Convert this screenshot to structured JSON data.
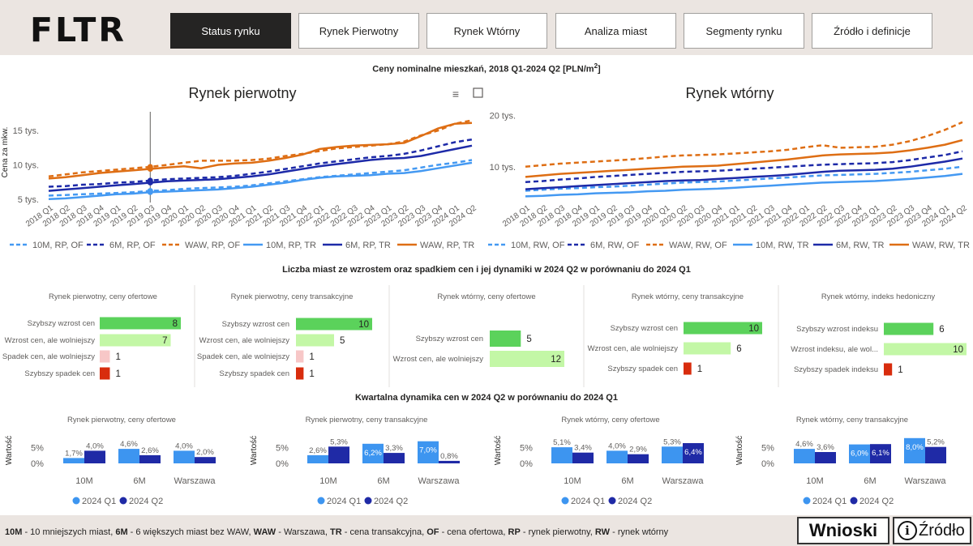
{
  "header": {
    "logo": "FLTR",
    "tabs": [
      "Status rynku",
      "Rynek Pierwotny",
      "Rynek Wtórny",
      "Analiza miast",
      "Segmenty rynku",
      "Źródło i definicje"
    ]
  },
  "colors": {
    "light_blue": "#4499f2",
    "dark_blue": "#1d2aa8",
    "orange": "#de6e14",
    "bar_green": "#5bd25b",
    "bar_lightgreen": "#c3f7a6",
    "bar_pink": "#f7c7c7",
    "bar_red": "#d82c0d",
    "q1": "#3d95f0",
    "q2": "#1f2aa6"
  },
  "prices": {
    "title_main": "Ceny nominalne mieszkań, 2018 Q1-2024 Q2 [PLN/m",
    "title_sup": "2",
    "title_end": "]",
    "quarters": [
      "2018 Q1",
      "2018 Q2",
      "2018 Q3",
      "2018 Q4",
      "2019 Q1",
      "2019 Q2",
      "2019 Q3",
      "2019 Q4",
      "2020 Q1",
      "2020 Q2",
      "2020 Q3",
      "2020 Q4",
      "2021 Q1",
      "2021 Q2",
      "2021 Q3",
      "2021 Q4",
      "2022 Q1",
      "2022 Q2",
      "2022 Q3",
      "2022 Q4",
      "2023 Q1",
      "2023 Q2",
      "2023 Q3",
      "2023 Q4",
      "2024 Q1",
      "2024 Q2"
    ],
    "ylabel": "Cena za mkw."
  },
  "chart_data": [
    {
      "type": "line",
      "title": "Rynek pierwotny",
      "ylabel": "Cena za mkw.",
      "ylim": [
        4500,
        17500
      ],
      "yticks": [
        {
          "v": 5000,
          "label": "5 tys."
        },
        {
          "v": 10000,
          "label": "10 tys."
        },
        {
          "v": 15000,
          "label": "15 tys."
        }
      ],
      "series": [
        {
          "name": "10M, RP, OF",
          "color": "light_blue",
          "dashed": true,
          "values": [
            5500,
            5600,
            5700,
            5800,
            5900,
            6000,
            6200,
            6300,
            6500,
            6600,
            6700,
            6800,
            7000,
            7300,
            7600,
            7900,
            8200,
            8400,
            8600,
            8800,
            9000,
            9200,
            9600,
            10000,
            10300,
            10700
          ]
        },
        {
          "name": "6M, RP, OF",
          "color": "dark_blue",
          "dashed": true,
          "values": [
            6800,
            6900,
            7100,
            7200,
            7400,
            7500,
            7700,
            7900,
            8000,
            8100,
            8200,
            8400,
            8700,
            9000,
            9400,
            9800,
            10200,
            10500,
            10800,
            11100,
            11300,
            11600,
            12100,
            12700,
            13300,
            13700
          ]
        },
        {
          "name": "WAW, RP, OF",
          "color": "orange",
          "dashed": true,
          "values": [
            8300,
            8600,
            8900,
            9100,
            9300,
            9500,
            9700,
            10000,
            10300,
            10600,
            10600,
            10600,
            10700,
            10900,
            11300,
            11600,
            12000,
            12400,
            12600,
            12800,
            13000,
            13400,
            14300,
            15000,
            16000,
            16500
          ]
        },
        {
          "name": "10M, RP, TR",
          "color": "light_blue",
          "dashed": false,
          "values": [
            5000,
            5100,
            5300,
            5500,
            5700,
            5800,
            6000,
            6100,
            6200,
            6300,
            6400,
            6600,
            6800,
            7100,
            7400,
            7800,
            8100,
            8300,
            8400,
            8500,
            8700,
            8800,
            9100,
            9500,
            9900,
            10300
          ]
        },
        {
          "name": "6M, RP, TR",
          "color": "dark_blue",
          "dashed": false,
          "values": [
            6200,
            6400,
            6600,
            6800,
            7000,
            7200,
            7400,
            7600,
            7700,
            7800,
            7900,
            8100,
            8300,
            8600,
            9000,
            9400,
            9800,
            10100,
            10400,
            10700,
            10900,
            11000,
            11300,
            11800,
            12300,
            12800
          ]
        },
        {
          "name": "WAW, RP, TR",
          "color": "orange",
          "dashed": false,
          "values": [
            8000,
            8200,
            8500,
            8800,
            9000,
            9200,
            9400,
            9600,
            9800,
            9500,
            10000,
            10200,
            10300,
            10600,
            11000,
            11500,
            12300,
            12600,
            12800,
            12900,
            13000,
            13200,
            14200,
            15300,
            16000,
            16100
          ]
        }
      ]
    },
    {
      "type": "line",
      "title": "Rynek wtórny",
      "ylabel": "",
      "ylim": [
        3000,
        22000
      ],
      "yticks": [
        {
          "v": 10000,
          "label": "10 tys."
        },
        {
          "v": 20000,
          "label": "20 tys."
        }
      ],
      "series": [
        {
          "name": "10M, RW, OF",
          "color": "light_blue",
          "dashed": true,
          "values": [
            5300,
            5500,
            5700,
            5800,
            6000,
            6100,
            6300,
            6500,
            6700,
            6900,
            7000,
            7100,
            7300,
            7500,
            7700,
            7900,
            8100,
            8300,
            8400,
            8500,
            8600,
            8800,
            9000,
            9300,
            9600,
            10000
          ]
        },
        {
          "name": "6M, RW, OF",
          "color": "dark_blue",
          "dashed": true,
          "values": [
            7000,
            7200,
            7500,
            7700,
            8000,
            8200,
            8400,
            8600,
            8800,
            9000,
            9100,
            9200,
            9400,
            9600,
            9800,
            10000,
            10200,
            10400,
            10500,
            10600,
            10700,
            10900,
            11300,
            11800,
            12300,
            13000
          ]
        },
        {
          "name": "WAW, RW, OF",
          "color": "orange",
          "dashed": true,
          "values": [
            10000,
            10300,
            10600,
            10800,
            11000,
            11200,
            11400,
            11700,
            12000,
            12200,
            12300,
            12400,
            12600,
            12800,
            13000,
            13300,
            13800,
            14200,
            13700,
            13800,
            13900,
            14300,
            15000,
            16000,
            17200,
            18700
          ]
        },
        {
          "name": "10M, RW, TR",
          "color": "light_blue",
          "dashed": false,
          "values": [
            4200,
            4300,
            4500,
            4600,
            4800,
            4900,
            5000,
            5200,
            5300,
            5500,
            5600,
            5700,
            5900,
            6100,
            6300,
            6500,
            6700,
            6900,
            7000,
            7100,
            7200,
            7400,
            7600,
            7900,
            8200,
            8600
          ]
        },
        {
          "name": "6M, RW, TR",
          "color": "dark_blue",
          "dashed": false,
          "values": [
            5600,
            5800,
            6000,
            6200,
            6400,
            6600,
            6800,
            7000,
            7200,
            7300,
            7400,
            7600,
            7800,
            8000,
            8200,
            8400,
            8700,
            9000,
            9200,
            9300,
            9400,
            9600,
            10000,
            10500,
            11000,
            11600
          ]
        },
        {
          "name": "WAW, RW, TR",
          "color": "orange",
          "dashed": false,
          "values": [
            8000,
            8300,
            8600,
            8800,
            9000,
            9200,
            9400,
            9600,
            9800,
            10000,
            10100,
            10200,
            10500,
            10800,
            11100,
            11400,
            11800,
            12200,
            12400,
            12500,
            12600,
            12800,
            13200,
            13700,
            14300,
            15200
          ]
        }
      ]
    },
    {
      "type": "bar",
      "orientation": "horizontal",
      "title": "Rynek pierwotny, ceny ofertowe",
      "categories": [
        "Szybszy wzrost cen",
        "Wzrost cen, ale wolniejszy",
        "Spadek cen, ale wolniejszy",
        "Szybszy spadek cen"
      ],
      "values": [
        8,
        7,
        1,
        1
      ],
      "colors": [
        "bar_green",
        "bar_lightgreen",
        "bar_pink",
        "bar_red"
      ],
      "max": 8
    },
    {
      "type": "bar",
      "orientation": "horizontal",
      "title": "Rynek pierwotny, ceny transakcyjne",
      "categories": [
        "Szybszy wzrost cen",
        "Wzrost cen, ale wolniejszy",
        "Spadek cen, ale wolniejszy",
        "Szybszy spadek cen"
      ],
      "values": [
        10,
        5,
        1,
        1
      ],
      "colors": [
        "bar_green",
        "bar_lightgreen",
        "bar_pink",
        "bar_red"
      ],
      "max": 10
    },
    {
      "type": "bar",
      "orientation": "horizontal",
      "title": "Rynek wtórny, ceny ofertowe",
      "categories": [
        "Szybszy wzrost cen",
        "Wzrost cen, ale wolniejszy"
      ],
      "values": [
        5,
        12
      ],
      "colors": [
        "bar_green",
        "bar_lightgreen"
      ],
      "max": 12
    },
    {
      "type": "bar",
      "orientation": "horizontal",
      "title": "Rynek wtórny, ceny transakcyjne",
      "categories": [
        "Szybszy wzrost cen",
        "Wzrost cen, ale wolniejszy",
        "Szybszy spadek cen"
      ],
      "values": [
        10,
        6,
        1
      ],
      "colors": [
        "bar_green",
        "bar_lightgreen",
        "bar_red"
      ],
      "max": 10
    },
    {
      "type": "bar",
      "orientation": "horizontal",
      "title": "Rynek wtórny, indeks hedoniczny",
      "categories": [
        "Szybszy wzrost indeksu",
        "Wzrost indeksu, ale wol...",
        "Szybszy spadek indeksu"
      ],
      "values": [
        6,
        10,
        1
      ],
      "colors": [
        "bar_green",
        "bar_lightgreen",
        "bar_red"
      ],
      "max": 10
    },
    {
      "type": "bar",
      "title": "Rynek pierwotny, ceny ofertowe",
      "ylabel": "Wartość",
      "yticks": [
        "5%",
        "0%"
      ],
      "categories": [
        "10M",
        "6M",
        "Warszawa"
      ],
      "series": [
        {
          "name": "2024 Q1",
          "values": [
            1.7,
            4.6,
            4.0
          ],
          "labels": [
            "1,7%",
            "4,6%",
            "4,0%"
          ]
        },
        {
          "name": "2024 Q2",
          "values": [
            4.0,
            2.6,
            2.0
          ],
          "labels": [
            "4,0%",
            "2,6%",
            "2,0%"
          ]
        }
      ]
    },
    {
      "type": "bar",
      "title": "Rynek pierwotny, ceny transakcyjne",
      "ylabel": "Wartość",
      "yticks": [
        "5%",
        "0%"
      ],
      "categories": [
        "10M",
        "6M",
        "Warszawa"
      ],
      "series": [
        {
          "name": "2024 Q1",
          "values": [
            2.6,
            6.2,
            7.0
          ],
          "labels": [
            "2,6%",
            "6,2%",
            "7,0%"
          ]
        },
        {
          "name": "2024 Q2",
          "values": [
            5.3,
            3.3,
            0.8
          ],
          "labels": [
            "5,3%",
            "3,3%",
            "0,8%"
          ]
        }
      ]
    },
    {
      "type": "bar",
      "title": "Rynek wtórny, ceny ofertowe",
      "ylabel": "Wartość",
      "yticks": [
        "5%",
        "0%"
      ],
      "categories": [
        "10M",
        "6M",
        "Warszawa"
      ],
      "series": [
        {
          "name": "2024 Q1",
          "values": [
            5.1,
            4.0,
            5.3
          ],
          "labels": [
            "5,1%",
            "4,0%",
            "5,3%"
          ]
        },
        {
          "name": "2024 Q2",
          "values": [
            3.4,
            2.9,
            6.4
          ],
          "labels": [
            "3,4%",
            "2,9%",
            "6,4%"
          ]
        }
      ]
    },
    {
      "type": "bar",
      "title": "Rynek wtórny, ceny transakcyjne",
      "ylabel": "Wartość",
      "yticks": [
        "5%",
        "0%"
      ],
      "categories": [
        "10M",
        "6M",
        "Warszawa"
      ],
      "series": [
        {
          "name": "2024 Q1",
          "values": [
            4.6,
            6.0,
            8.0
          ],
          "labels": [
            "4,6%",
            "6,0%",
            "8,0%"
          ]
        },
        {
          "name": "2024 Q2",
          "values": [
            3.6,
            6.1,
            5.2
          ],
          "labels": [
            "3,6%",
            "6,1%",
            "5,2%"
          ]
        }
      ]
    }
  ],
  "sections": {
    "counts_title": "Liczba miast ze wzrostem oraz spadkiem cen i jej dynamiki w 2024 Q2 w porównaniu do 2024 Q1",
    "dynamics_title": "Kwartalna dynamika cen w 2024 Q2 w porównaniu do 2024 Q1"
  },
  "footer": {
    "legend": [
      {
        "k": "10M",
        "v": " - 10 mniejszych miast, "
      },
      {
        "k": "6M",
        "v": " - 6 większych miast bez WAW, "
      },
      {
        "k": "WAW",
        "v": " - Warszawa, "
      },
      {
        "k": "TR",
        "v": " - cena transakcyjna, "
      },
      {
        "k": "OF",
        "v": " - cena ofertowa, "
      },
      {
        "k": "RP",
        "v": " - rynek pierwotny, "
      },
      {
        "k": "RW",
        "v": " - rynek wtórny"
      }
    ],
    "btn_wnioski": "Wnioski",
    "btn_zrodlo": "Źródło",
    "info_glyph": "i"
  }
}
